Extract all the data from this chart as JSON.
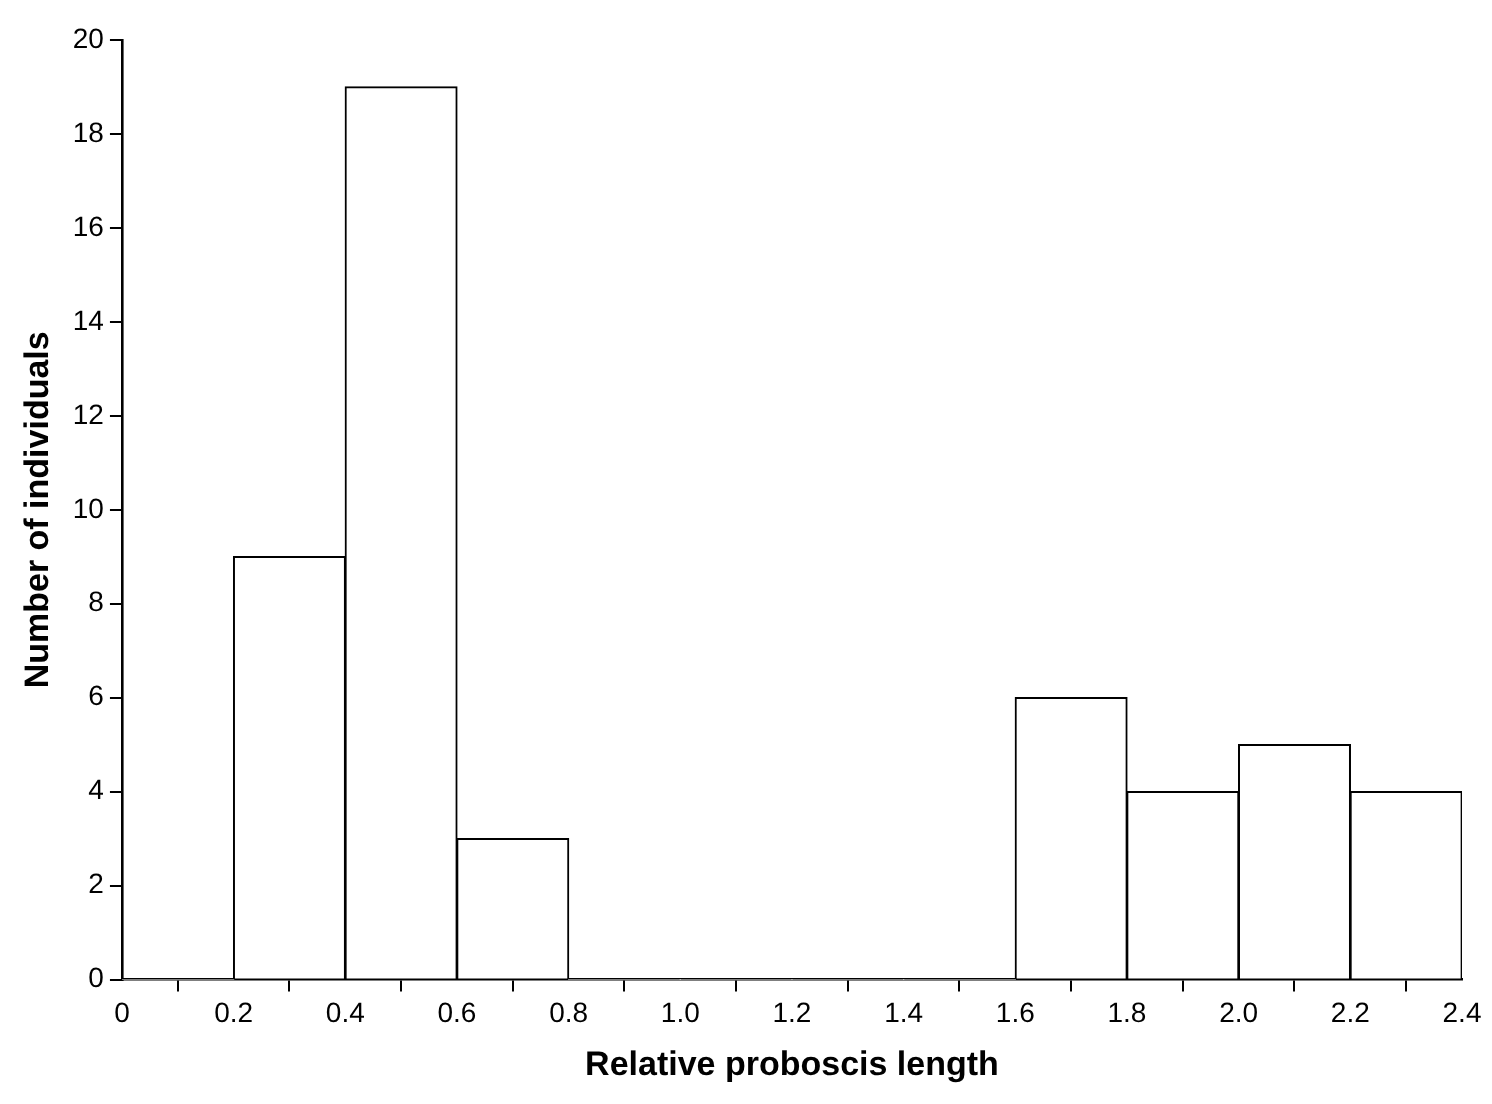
{
  "chart_data": {
    "type": "histogram",
    "xlabel": "Relative proboscis length",
    "ylabel": "Number of individuals",
    "bins": [
      0,
      0.2,
      0.4,
      0.6,
      0.8,
      1.0,
      1.2,
      1.4,
      1.6,
      1.8,
      2.0,
      2.2,
      2.4
    ],
    "values": [
      0,
      9,
      19,
      3,
      0,
      0,
      0,
      0,
      6,
      4,
      5,
      4
    ],
    "color": "#ffffff",
    "xlim": [
      0,
      2.4
    ],
    "xticks": [
      0,
      0.2,
      0.4,
      0.6,
      0.8,
      {
        "value": 1,
        "label": "1.0"
      },
      1.2,
      1.4,
      1.6,
      1.8,
      {
        "value": 2,
        "label": "2.0"
      },
      2.2,
      2.4
    ],
    "ylim": [
      0,
      20
    ],
    "yticks": [
      0,
      2,
      4,
      6,
      8,
      10,
      12,
      14,
      16,
      18,
      20
    ],
    "grid": false,
    "legend": false
  }
}
